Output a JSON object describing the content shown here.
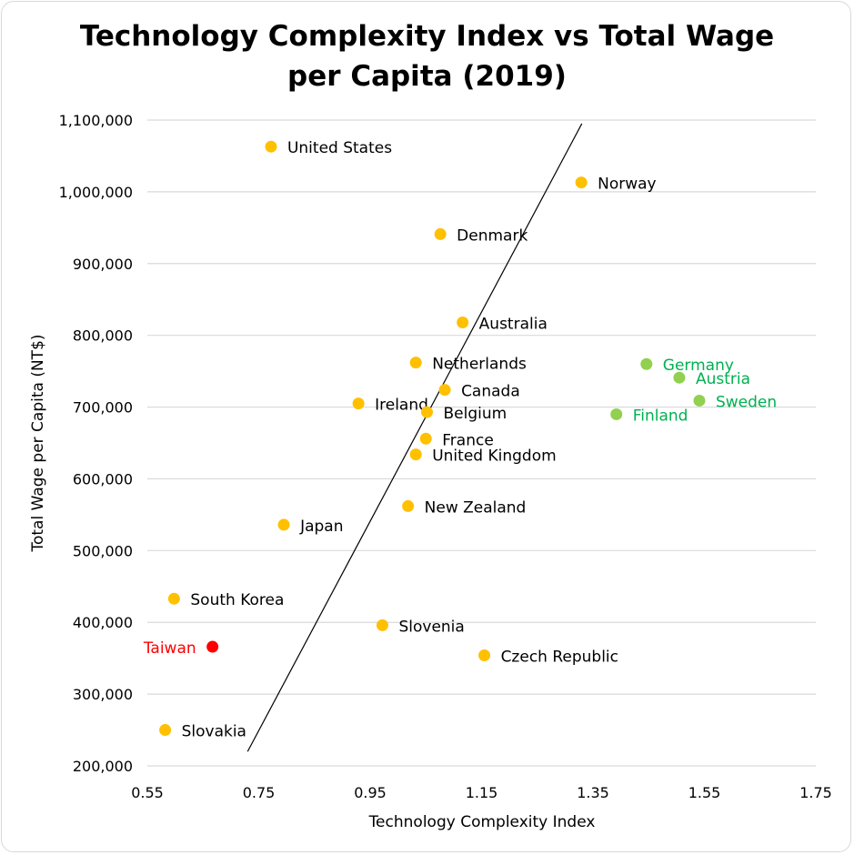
{
  "chart_data": {
    "type": "scatter",
    "title_lines": [
      "Technology Complexity Index vs Total Wage",
      "per Capita (2019)"
    ],
    "xlabel": "Technology Complexity Index",
    "ylabel": "Total Wage per Capita (NT$)",
    "xlim": [
      0.55,
      1.75
    ],
    "ylim": [
      200000,
      1100000
    ],
    "x_ticks": [
      0.55,
      0.75,
      0.95,
      1.15,
      1.35,
      1.55,
      1.75
    ],
    "x_tick_labels": [
      "0.55",
      "0.75",
      "0.95",
      "1.15",
      "1.35",
      "1.55",
      "1.75"
    ],
    "y_ticks": [
      200000,
      300000,
      400000,
      500000,
      600000,
      700000,
      800000,
      900000,
      1000000,
      1100000
    ],
    "y_tick_labels": [
      "200,000",
      "300,000",
      "400,000",
      "500,000",
      "600,000",
      "700,000",
      "800,000",
      "900,000",
      "1,000,000",
      "1,100,000"
    ],
    "grid": true,
    "colors": {
      "default_point": "#ffc000",
      "highlight_point": "#ff0000",
      "highlight_label": "#ff0000",
      "group_point": "#92d050",
      "group_label": "#00b050",
      "default_label": "#000000",
      "gridline": "#d9d9d9",
      "trendline": "#000000"
    },
    "trendline": {
      "x": [
        0.73,
        1.33
      ],
      "y": [
        220000,
        1095000
      ]
    },
    "points": [
      {
        "name": "United States",
        "x": 0.772,
        "y": 1063000,
        "group": "default",
        "label_side": "right"
      },
      {
        "name": "Norway",
        "x": 1.329,
        "y": 1013000,
        "group": "default",
        "label_side": "right"
      },
      {
        "name": "Denmark",
        "x": 1.076,
        "y": 941000,
        "group": "default",
        "label_side": "right"
      },
      {
        "name": "Australia",
        "x": 1.116,
        "y": 818000,
        "group": "default",
        "label_side": "right"
      },
      {
        "name": "Netherlands",
        "x": 1.032,
        "y": 762000,
        "group": "default",
        "label_side": "right"
      },
      {
        "name": "Canada",
        "x": 1.084,
        "y": 724000,
        "group": "default",
        "label_side": "right"
      },
      {
        "name": "Ireland",
        "x": 0.929,
        "y": 705000,
        "group": "default",
        "label_side": "right"
      },
      {
        "name": "Belgium",
        "x": 1.052,
        "y": 693000,
        "group": "default",
        "label_side": "right"
      },
      {
        "name": "France",
        "x": 1.05,
        "y": 656000,
        "group": "default",
        "label_side": "right"
      },
      {
        "name": "United Kingdom",
        "x": 1.032,
        "y": 634000,
        "group": "default",
        "label_side": "right"
      },
      {
        "name": "New Zealand",
        "x": 1.018,
        "y": 562000,
        "group": "default",
        "label_side": "right"
      },
      {
        "name": "Japan",
        "x": 0.795,
        "y": 536000,
        "group": "default",
        "label_side": "right"
      },
      {
        "name": "South Korea",
        "x": 0.598,
        "y": 433000,
        "group": "default",
        "label_side": "right"
      },
      {
        "name": "Slovenia",
        "x": 0.972,
        "y": 396000,
        "group": "default",
        "label_side": "right"
      },
      {
        "name": "Czech Republic",
        "x": 1.155,
        "y": 354000,
        "group": "default",
        "label_side": "right"
      },
      {
        "name": "Slovakia",
        "x": 0.582,
        "y": 250000,
        "group": "default",
        "label_side": "right"
      },
      {
        "name": "Taiwan",
        "x": 0.667,
        "y": 366000,
        "group": "highlight",
        "label_side": "left"
      },
      {
        "name": "Germany",
        "x": 1.446,
        "y": 760000,
        "group": "green",
        "label_side": "right"
      },
      {
        "name": "Austria",
        "x": 1.505,
        "y": 741000,
        "group": "green",
        "label_side": "right"
      },
      {
        "name": "Sweden",
        "x": 1.541,
        "y": 709000,
        "group": "green",
        "label_side": "right"
      },
      {
        "name": "Finland",
        "x": 1.392,
        "y": 690000,
        "group": "green",
        "label_side": "right"
      }
    ]
  }
}
